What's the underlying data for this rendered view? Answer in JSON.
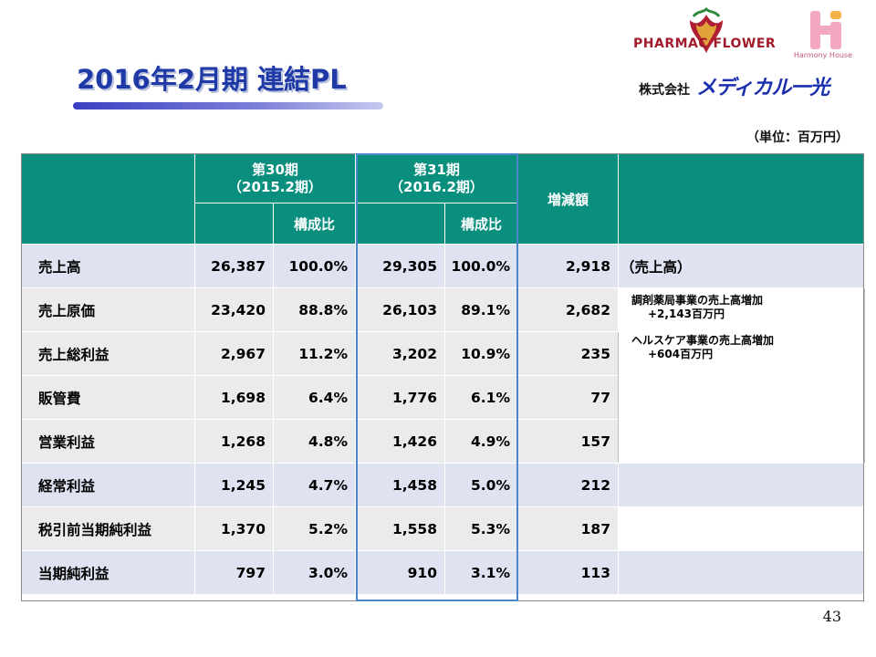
{
  "slide": {
    "title": "2016年2月期  連結PL",
    "unit": "（単位：百万円）",
    "page_number": "43"
  },
  "logos": {
    "pharmacy_flower": "PHARMAC  FLOWER",
    "harmony_house": "Harmony House",
    "company_prefix": "株式会社",
    "company_brand": "メディカル一光"
  },
  "table": {
    "header": {
      "period30": "第30期",
      "period30_sub": "（2015.2期）",
      "period31": "第31期",
      "period31_sub": "（2016.2期）",
      "ratio": "構成比",
      "change": "増減額"
    },
    "rows": [
      {
        "label": "売上高",
        "v30": "26,387",
        "r30": "100.0%",
        "v31": "29,305",
        "r31": "100.0%",
        "diff": "2,918",
        "note": "（売上高）"
      },
      {
        "label": "売上原価",
        "v30": "23,420",
        "r30": "88.8%",
        "v31": "26,103",
        "r31": "89.1%",
        "diff": "2,682"
      },
      {
        "label": "売上総利益",
        "v30": "2,967",
        "r30": "11.2%",
        "v31": "3,202",
        "r31": "10.9%",
        "diff": "235"
      },
      {
        "label": "販管費",
        "v30": "1,698",
        "r30": "6.4%",
        "v31": "1,776",
        "r31": "6.1%",
        "diff": "77"
      },
      {
        "label": "営業利益",
        "v30": "1,268",
        "r30": "4.8%",
        "v31": "1,426",
        "r31": "4.9%",
        "diff": "157"
      },
      {
        "label": "経常利益",
        "v30": "1,245",
        "r30": "4.7%",
        "v31": "1,458",
        "r31": "5.0%",
        "diff": "212"
      },
      {
        "label": "税引前当期純利益",
        "v30": "1,370",
        "r30": "5.2%",
        "v31": "1,558",
        "r31": "5.3%",
        "diff": "187"
      },
      {
        "label": "当期純利益",
        "v30": "797",
        "r30": "3.0%",
        "v31": "910",
        "r31": "3.1%",
        "diff": "113"
      }
    ],
    "notes": {
      "line1": "調剤薬局事業の売上高増加",
      "line1_amount": "+2,143百万円",
      "line2": "ヘルスケア事業の売上高増加",
      "line2_amount": "+604百万円"
    }
  },
  "colors": {
    "header_teal": "#0a8f7e",
    "row_blue": "#dfe3f1",
    "row_gray": "#ebebeb",
    "highlight_border": "#4a86c9",
    "title_blue": "#1f3aa6"
  }
}
